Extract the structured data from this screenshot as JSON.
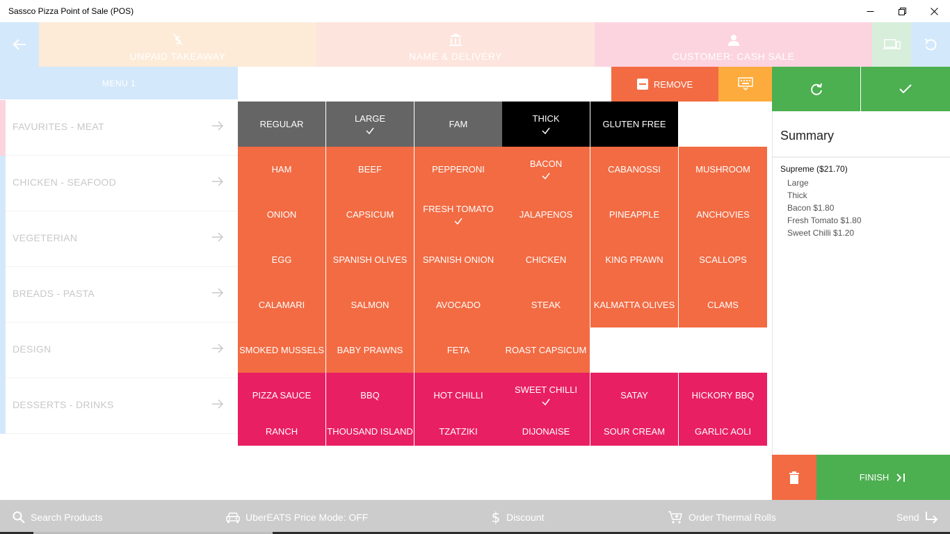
{
  "window": {
    "title": "Sassco Pizza Point of Sale (POS)"
  },
  "topbar": {
    "unpaid_label": "UNPAID TAKEAWAY",
    "delivery_label": "NAME & DELIVERY",
    "customer_label": "CUSTOMER: CASH SALE",
    "colors": {
      "back": "#d4e8fb",
      "unpaid": "#fdebd8",
      "delivery": "#fde4dc",
      "customer": "#fcd4df",
      "device": "#d7eedb",
      "undo": "#d4e8fb"
    }
  },
  "menu": {
    "tab_label": "MENU 1",
    "categories": [
      {
        "label": "FAVURITES - MEAT",
        "bar": "#fcd4df"
      },
      {
        "label": "CHICKEN - SEAFOOD",
        "bar": "#d4e8fb"
      },
      {
        "label": "VEGETERIAN",
        "bar": "#d4e8fb"
      },
      {
        "label": "BREADS - PASTA",
        "bar": "#d4e8fb"
      },
      {
        "label": "DESIGN",
        "bar": "#d4e8fb"
      },
      {
        "label": "DESSERTS - DRINKS",
        "bar": "#d4e8fb"
      }
    ]
  },
  "actions": {
    "remove_label": "REMOVE"
  },
  "sizes": [
    {
      "label": "REGULAR",
      "checked": false,
      "color": "gray"
    },
    {
      "label": "LARGE",
      "checked": true,
      "color": "gray"
    },
    {
      "label": "FAM",
      "checked": false,
      "color": "gray"
    },
    {
      "label": "THICK",
      "checked": true,
      "color": "black"
    },
    {
      "label": "GLUTEN FREE",
      "checked": false,
      "color": "black"
    }
  ],
  "toppings": [
    [
      {
        "label": "HAM"
      },
      {
        "label": "BEEF"
      },
      {
        "label": "PEPPERONI"
      },
      {
        "label": "BACON",
        "checked": true
      },
      {
        "label": "CABANOSSI"
      },
      {
        "label": "MUSHROOM"
      }
    ],
    [
      {
        "label": "ONION"
      },
      {
        "label": "CAPSICUM"
      },
      {
        "label": "FRESH TOMATO",
        "checked": true
      },
      {
        "label": "JALAPENOS"
      },
      {
        "label": "PINEAPPLE"
      },
      {
        "label": "ANCHOVIES"
      }
    ],
    [
      {
        "label": "EGG"
      },
      {
        "label": "SPANISH OLIVES"
      },
      {
        "label": "SPANISH ONION"
      },
      {
        "label": "CHICKEN"
      },
      {
        "label": "KING PRAWN"
      },
      {
        "label": "SCALLOPS"
      }
    ],
    [
      {
        "label": "CALAMARI"
      },
      {
        "label": "SALMON"
      },
      {
        "label": "AVOCADO"
      },
      {
        "label": "STEAK"
      },
      {
        "label": "KALMATTA OLIVES"
      },
      {
        "label": "CLAMS"
      }
    ],
    [
      {
        "label": "SMOKED MUSSELS"
      },
      {
        "label": "BABY PRAWNS"
      },
      {
        "label": "FETA"
      },
      {
        "label": "ROAST CAPSICUM"
      }
    ]
  ],
  "sauces": [
    [
      {
        "label": "PIZZA SAUCE"
      },
      {
        "label": "BBQ"
      },
      {
        "label": "HOT CHILLI"
      },
      {
        "label": "SWEET CHILLI",
        "checked": true
      },
      {
        "label": "SATAY"
      },
      {
        "label": "HICKORY BBQ"
      }
    ],
    [
      {
        "label": "RANCH"
      },
      {
        "label": "THOUSAND ISLAND"
      },
      {
        "label": "TZATZIKI"
      },
      {
        "label": "DIJONAISE"
      },
      {
        "label": "SOUR CREAM"
      },
      {
        "label": "GARLIC AOLI"
      }
    ]
  ],
  "summary": {
    "title": "Summary",
    "item": "Supreme ($21.70)",
    "modifiers": [
      "Large",
      "Thick",
      "Bacon $1.80",
      "Fresh Tomato $1.80",
      "Sweet Chilli $1.20"
    ]
  },
  "finish": {
    "label": "FINISH"
  },
  "bottombar": {
    "search_label": "Search Products",
    "uber_label": "UberEATS Price Mode: OFF",
    "discount_label": "Discount",
    "order_label": "Order Thermal Rolls",
    "send_label": "Send"
  },
  "colors": {
    "orange": "#f26b43",
    "pink": "#e91f63",
    "green": "#4caf50",
    "amber": "#fdab3d",
    "gray": "#656565"
  }
}
